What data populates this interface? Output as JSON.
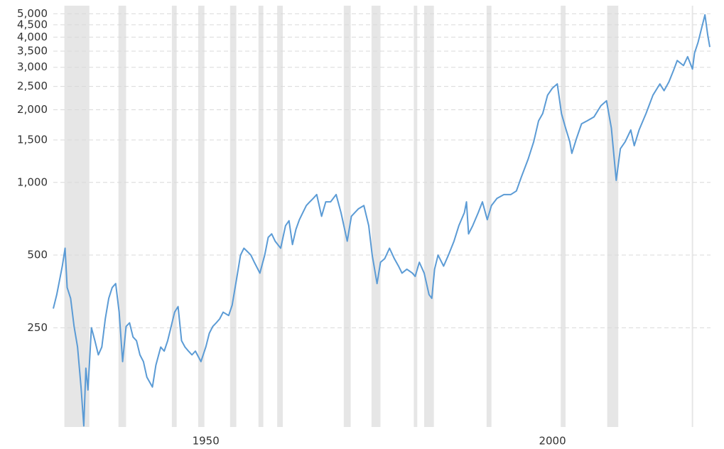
{
  "chart_data": {
    "type": "line",
    "log_scale": true,
    "grid": true,
    "recession_color": "#e6e6e6",
    "recessions": [
      [
        1929.6,
        1933.2
      ],
      [
        1937.4,
        1938.5
      ],
      [
        1945.1,
        1945.8
      ],
      [
        1948.9,
        1949.8
      ],
      [
        1953.5,
        1954.4
      ],
      [
        1957.6,
        1958.3
      ],
      [
        1960.3,
        1961.1
      ],
      [
        1969.9,
        1970.9
      ],
      [
        1973.9,
        1975.2
      ],
      [
        1980.0,
        1980.5
      ],
      [
        1981.5,
        1982.9
      ],
      [
        1990.5,
        1991.2
      ],
      [
        2001.2,
        2001.9
      ],
      [
        2007.9,
        2009.5
      ],
      [
        2020.1,
        2020.3
      ]
    ],
    "xlim": [
      1928,
      2022.8
    ],
    "xticks": [
      1950,
      2000
    ],
    "ylim": [
      97,
      5400
    ],
    "yticks": [
      250,
      500,
      {
        "value": 1000,
        "label": "1,000"
      },
      {
        "value": 1500,
        "label": "1,500"
      },
      {
        "value": 2000,
        "label": "2,000"
      },
      {
        "value": 2500,
        "label": "2,500"
      },
      {
        "value": 3000,
        "label": "3,000"
      },
      {
        "value": 3500,
        "label": "3,500"
      },
      {
        "value": 4000,
        "label": "4,000"
      },
      {
        "value": 4500,
        "label": "4,500"
      },
      {
        "value": 5000,
        "label": "5,000"
      }
    ],
    "x": [
      1928.0,
      1928.5,
      1929.3,
      1929.7,
      1930.0,
      1930.5,
      1931.0,
      1931.5,
      1932.0,
      1932.4,
      1932.7,
      1933.0,
      1933.5,
      1934.0,
      1934.5,
      1935.0,
      1935.5,
      1936.0,
      1936.5,
      1937.0,
      1937.5,
      1938.0,
      1938.5,
      1939.0,
      1939.5,
      1940.0,
      1940.5,
      1941.0,
      1941.5,
      1942.3,
      1942.8,
      1943.5,
      1944.0,
      1944.5,
      1945.0,
      1945.5,
      1946.0,
      1946.5,
      1947.0,
      1947.5,
      1948.0,
      1948.5,
      1949.3,
      1950.0,
      1950.5,
      1951.0,
      1951.5,
      1952.0,
      1952.5,
      1953.3,
      1953.8,
      1954.5,
      1955.0,
      1955.5,
      1956.0,
      1956.5,
      1957.0,
      1957.8,
      1958.5,
      1959.0,
      1959.5,
      1960.0,
      1960.8,
      1961.5,
      1962.0,
      1962.5,
      1963.0,
      1963.5,
      1964.0,
      1964.5,
      1965.0,
      1965.5,
      1966.0,
      1966.7,
      1967.3,
      1968.0,
      1968.8,
      1969.5,
      1970.4,
      1971.0,
      1971.5,
      1972.0,
      1972.8,
      1973.5,
      1974.0,
      1974.7,
      1975.2,
      1975.8,
      1976.5,
      1977.2,
      1977.8,
      1978.3,
      1979.0,
      1979.8,
      1980.2,
      1980.8,
      1981.5,
      1982.2,
      1982.6,
      1983.0,
      1983.5,
      1984.3,
      1985.0,
      1985.8,
      1986.5,
      1987.3,
      1987.6,
      1987.9,
      1988.5,
      1989.3,
      1989.9,
      1990.6,
      1991.2,
      1992.0,
      1993.0,
      1994.0,
      1994.8,
      1995.5,
      1996.5,
      1997.3,
      1998.0,
      1998.6,
      1999.3,
      2000.0,
      2000.7,
      2001.3,
      2001.9,
      2002.5,
      2002.8,
      2003.5,
      2004.2,
      2005.0,
      2006.0,
      2007.0,
      2007.8,
      2008.5,
      2009.2,
      2009.8,
      2010.5,
      2011.3,
      2011.8,
      2012.5,
      2013.5,
      2014.5,
      2015.5,
      2016.1,
      2016.8,
      2017.5,
      2018.0,
      2018.9,
      2019.5,
      2020.2,
      2020.5,
      2021.0,
      2021.5,
      2022.0,
      2022.4,
      2022.7
    ],
    "series": [
      {
        "color": "#5b9bd5",
        "values": [
          300,
          343,
          450,
          534,
          367,
          331,
          253,
          208,
          142,
          98,
          170,
          138,
          250,
          221,
          193,
          208,
          272,
          331,
          367,
          381,
          290,
          181,
          253,
          262,
          229,
          221,
          193,
          181,
          156,
          142,
          175,
          208,
          200,
          221,
          253,
          290,
          306,
          221,
          208,
          200,
          193,
          200,
          181,
          208,
          237,
          253,
          262,
          272,
          290,
          281,
          310,
          408,
          499,
          534,
          517,
          500,
          467,
          421,
          500,
          592,
          612,
          571,
          534,
          662,
          694,
          553,
          639,
          701,
          750,
          802,
          831,
          859,
          891,
          724,
          831,
          831,
          891,
          750,
          571,
          724,
          750,
          777,
          802,
          662,
          500,
          381,
          467,
          483,
          534,
          483,
          450,
          421,
          437,
          421,
          408,
          467,
          421,
          343,
          331,
          437,
          500,
          450,
          500,
          571,
          662,
          750,
          831,
          612,
          662,
          750,
          831,
          701,
          802,
          859,
          891,
          891,
          922,
          1050,
          1250,
          1475,
          1800,
          1930,
          2300,
          2460,
          2560,
          1930,
          1680,
          1475,
          1320,
          1530,
          1750,
          1800,
          1870,
          2080,
          2180,
          1680,
          1020,
          1380,
          1475,
          1650,
          1420,
          1650,
          1930,
          2300,
          2560,
          2400,
          2610,
          2930,
          3200,
          3050,
          3320,
          2950,
          3440,
          3800,
          4340,
          4950,
          4080,
          3640
        ]
      }
    ]
  }
}
